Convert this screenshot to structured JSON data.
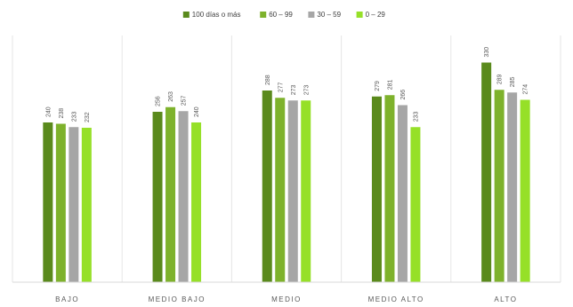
{
  "chart_data": {
    "type": "bar",
    "categories": [
      "BAJO",
      "MEDIO BAJO",
      "MEDIO",
      "MEDIO ALTO",
      "ALTO"
    ],
    "series": [
      {
        "name": "100 días o más",
        "values": [
          240,
          256,
          288,
          279,
          330
        ],
        "color": "#5a8a1c"
      },
      {
        "name": "60 – 99",
        "values": [
          238,
          263,
          277,
          281,
          289
        ],
        "color": "#7eb22c"
      },
      {
        "name": "30 – 59",
        "values": [
          233,
          257,
          273,
          266,
          285
        ],
        "color": "#a6a6a6"
      },
      {
        "name": "0 – 29",
        "values": [
          232,
          240,
          273,
          233,
          274
        ],
        "color": "#96e028"
      }
    ],
    "ylim": [
      0,
      400
    ],
    "grid": false,
    "category_separators": true,
    "legend_position": "top",
    "title": "",
    "xlabel": "",
    "ylabel": ""
  }
}
